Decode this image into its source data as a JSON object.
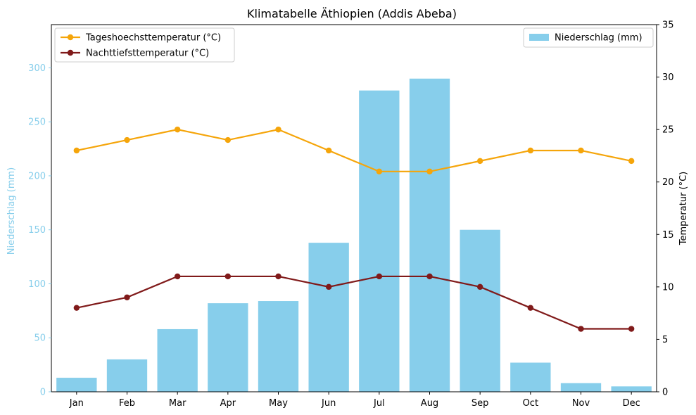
{
  "chart_data": {
    "type": "bar",
    "title": "Klimatabelle Äthiopien (Addis Abeba)",
    "categories": [
      "Jan",
      "Feb",
      "Mar",
      "Apr",
      "May",
      "Jun",
      "Jul",
      "Aug",
      "Sep",
      "Oct",
      "Nov",
      "Dec"
    ],
    "precipitation": {
      "name": "Niederschlag (mm)",
      "values": [
        13,
        30,
        58,
        82,
        84,
        138,
        279,
        290,
        150,
        27,
        8,
        5
      ],
      "color": "#87CEEB"
    },
    "temperature_series": [
      {
        "name": "Tageshoechsttemperatur (°C)",
        "values": [
          23,
          24,
          25,
          24,
          25,
          23,
          21,
          21,
          22,
          23,
          23,
          22
        ],
        "color": "#F5A50A"
      },
      {
        "name": "Nachttiefsttemperatur (°C)",
        "values": [
          8,
          9,
          11,
          11,
          11,
          10,
          11,
          11,
          10,
          8,
          6,
          6
        ],
        "color": "#801A1A"
      }
    ],
    "left_axis": {
      "label": "Niederschlag (mm)",
      "ylim": [
        0,
        340
      ],
      "ticks": [
        0,
        50,
        100,
        150,
        200,
        250,
        300
      ],
      "color": "#87CEEB"
    },
    "right_axis": {
      "label": "Temperatur (°C)",
      "ylim": [
        0,
        35
      ],
      "ticks": [
        0,
        5,
        10,
        15,
        20,
        25,
        30,
        35
      ],
      "color": "#000000"
    },
    "legend_lines_position": "top-left",
    "legend_bars_position": "top-right",
    "grid": false
  }
}
